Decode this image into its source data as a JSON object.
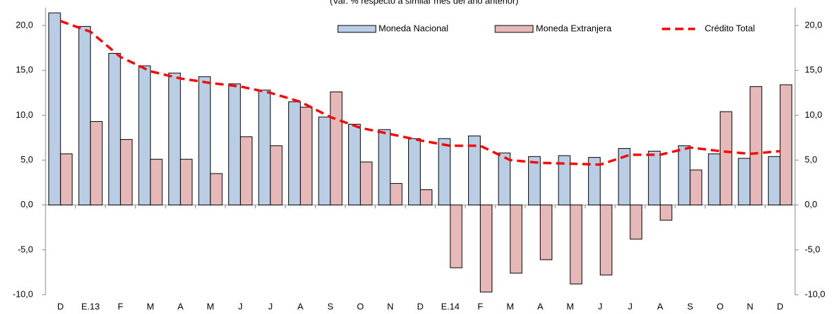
{
  "chart_data": {
    "type": "bar_line",
    "subtitle": "(Var. % respecto a similar mes del año anterior)",
    "categories": [
      "D",
      "E.13",
      "F",
      "M",
      "A",
      "M",
      "J",
      "J",
      "A",
      "S",
      "O",
      "N",
      "D",
      "E.14",
      "F",
      "M",
      "A",
      "M",
      "J",
      "J",
      "A",
      "S",
      "O",
      "N",
      "D"
    ],
    "series": [
      {
        "name": "Moneda Nacional",
        "type": "bar",
        "color": "#b9cde5",
        "values": [
          21.4,
          19.9,
          16.9,
          15.5,
          14.7,
          14.3,
          13.5,
          12.8,
          11.5,
          9.8,
          9.0,
          8.4,
          7.4,
          7.4,
          7.7,
          5.8,
          5.4,
          5.5,
          5.3,
          6.3,
          6.0,
          6.6,
          5.7,
          5.2,
          5.4
        ]
      },
      {
        "name": "Moneda Extranjera",
        "type": "bar",
        "color": "#e6b9b8",
        "values": [
          5.7,
          9.3,
          7.3,
          5.1,
          5.1,
          3.5,
          7.6,
          6.6,
          10.9,
          12.6,
          4.8,
          2.4,
          1.7,
          -7.0,
          -9.7,
          -7.6,
          -6.1,
          -8.8,
          -7.8,
          -3.8,
          -1.7,
          3.9,
          10.4,
          13.2,
          13.4
        ]
      },
      {
        "name": "Crédito Total",
        "type": "line",
        "color": "#ff0000",
        "values": [
          20.5,
          19.3,
          16.5,
          14.9,
          14.1,
          13.6,
          13.2,
          12.5,
          11.5,
          9.8,
          8.6,
          7.9,
          7.2,
          6.6,
          6.6,
          5.0,
          4.7,
          4.6,
          4.5,
          5.6,
          5.6,
          6.4,
          6.0,
          5.7,
          6.0
        ]
      }
    ],
    "ylim": [
      -10,
      22
    ],
    "yticks": [
      {
        "value": -10,
        "label": "-10,0"
      },
      {
        "value": -5,
        "label": "-5,0"
      },
      {
        "value": 0,
        "label": "0,0"
      },
      {
        "value": 5,
        "label": "5,0"
      },
      {
        "value": 10,
        "label": "10,0"
      },
      {
        "value": 15,
        "label": "15,0"
      },
      {
        "value": 20,
        "label": "20,0"
      }
    ],
    "y2lim": [
      -10,
      22
    ],
    "y2ticks": [
      {
        "value": -10,
        "label": "-10,0"
      },
      {
        "value": -5,
        "label": "-5,0"
      },
      {
        "value": 0,
        "label": "0,0"
      },
      {
        "value": 5,
        "label": "5,0"
      },
      {
        "value": 10,
        "label": "10,0"
      },
      {
        "value": 15,
        "label": "15,0"
      },
      {
        "value": 20,
        "label": "20,0"
      }
    ],
    "legend": "upper right"
  }
}
